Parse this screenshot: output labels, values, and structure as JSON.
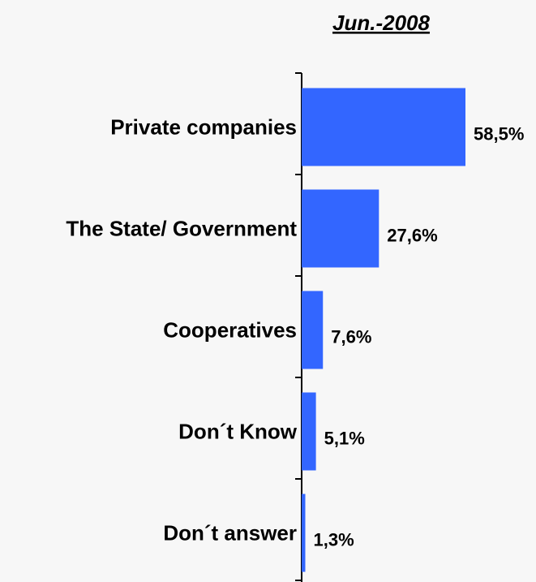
{
  "chart_data": {
    "type": "bar",
    "orientation": "horizontal",
    "title": "Jun.-2008",
    "categories": [
      "Private companies",
      "The State/ Government",
      "Cooperatives",
      "Don´t Know",
      "Don´t answer"
    ],
    "values": [
      58.5,
      27.6,
      7.6,
      5.1,
      1.3
    ],
    "value_labels": [
      "58,5%",
      "27,6%",
      "7,6%",
      "5,1%",
      "1,3%"
    ],
    "unit": "%",
    "xlim": [
      0,
      100
    ],
    "grid": false,
    "legend": "none",
    "colors": {
      "bar": "#3366ff",
      "axis": "#000000",
      "text": "#000000",
      "background": "#f7f7f7"
    }
  }
}
